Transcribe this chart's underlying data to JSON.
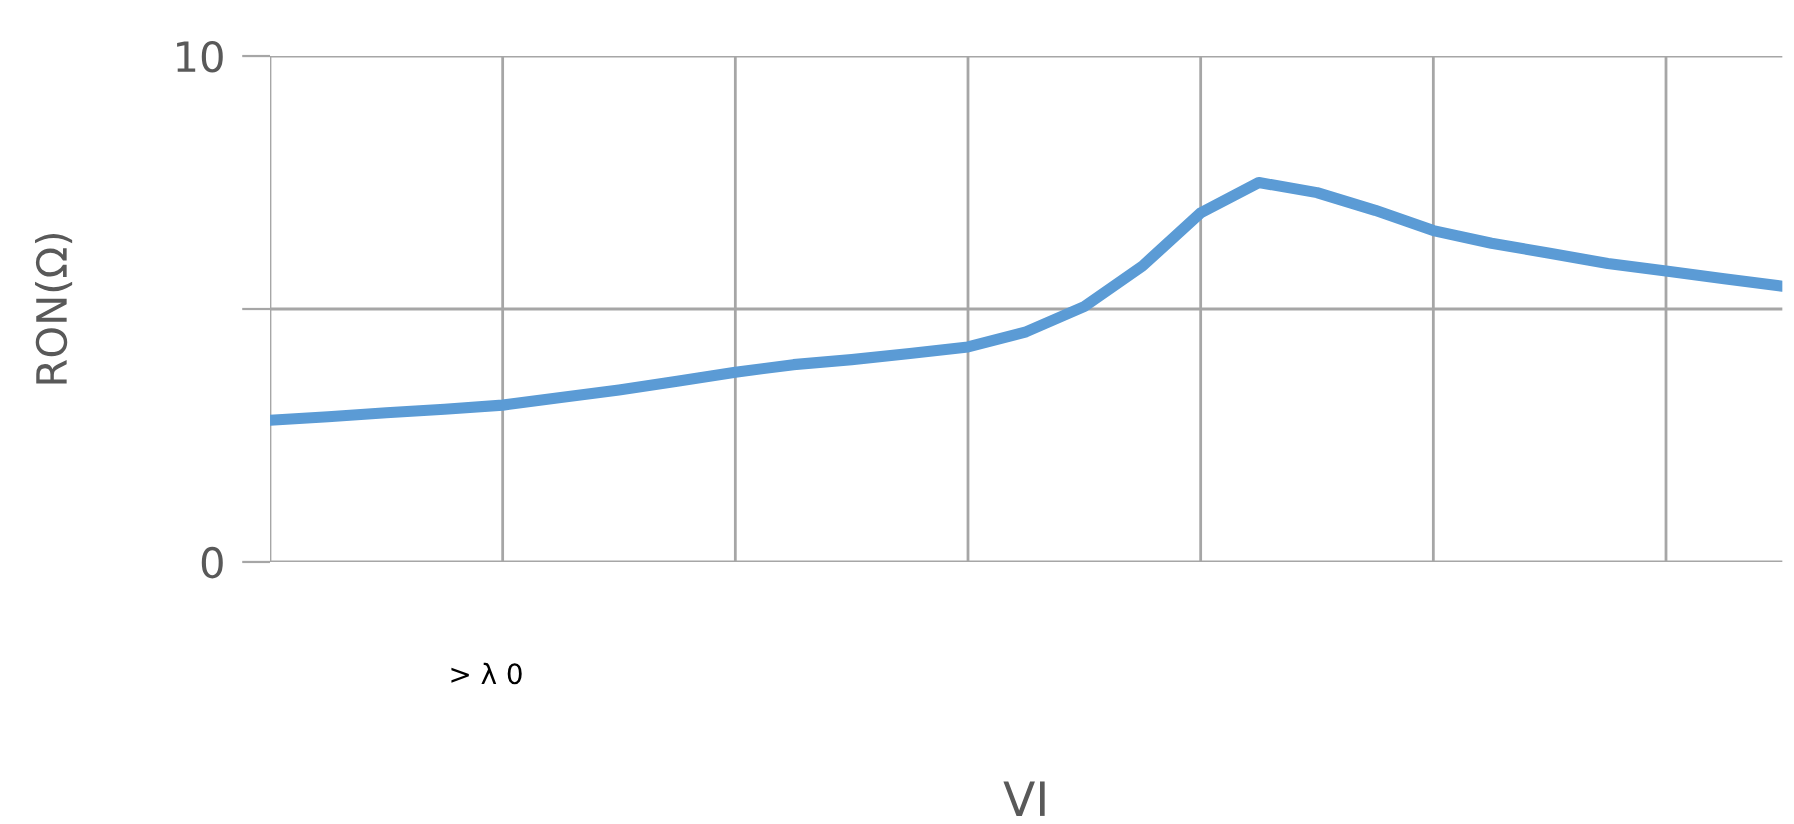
{
  "chart_data": {
    "type": "line",
    "xlabel": "VI",
    "ylabel": "RON(Ω)",
    "annotations": [
      "> λ 0"
    ],
    "categories": [
      null,
      null,
      null,
      null,
      null,
      null,
      null,
      null,
      null,
      null,
      null,
      null,
      null,
      null,
      null,
      null,
      null,
      null,
      null,
      null,
      null,
      null,
      null,
      null,
      null,
      null,
      null
    ],
    "series": [
      {
        "color": "#5b9bd5",
        "values": [
          2.8,
          2.87,
          2.95,
          3.02,
          3.1,
          3.25,
          3.4,
          3.57,
          3.75,
          3.9,
          4.0,
          4.12,
          4.25,
          4.55,
          5.05,
          5.85,
          6.9,
          7.5,
          7.3,
          6.95,
          6.55,
          6.3,
          6.1,
          5.9,
          5.75,
          5.6,
          5.45
        ]
      }
    ],
    "ylim": [
      0,
      10
    ],
    "yticks": [
      0,
      {
        "value": 5,
        "label": null
      },
      10
    ],
    "grid": true,
    "marker": "none",
    "line_style": "solid"
  }
}
